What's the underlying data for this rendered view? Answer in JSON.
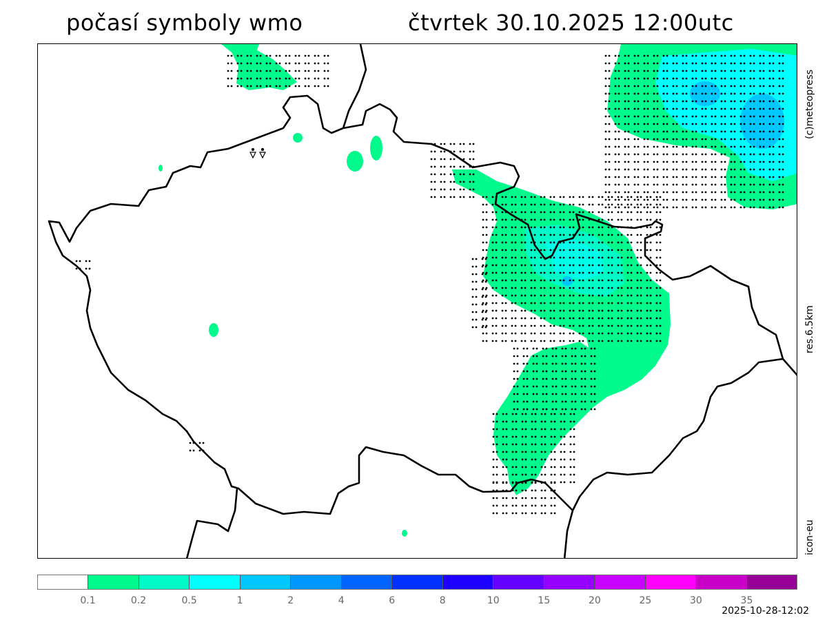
{
  "header": {
    "title": "počasí symboly wmo",
    "datetime": "čtvrtek 30.10.2025 12:00utc"
  },
  "side_labels": {
    "copyright": "(c)meteopress",
    "resolution": "res.6.5km",
    "model": "icon-eu"
  },
  "colorbar": {
    "colors": [
      "#ffffff",
      "#00fa8c",
      "#00fac8",
      "#00ffff",
      "#00c8ff",
      "#0096ff",
      "#0064ff",
      "#0032ff",
      "#1e00ff",
      "#6400ff",
      "#9600ff",
      "#c800ff",
      "#ff00ff",
      "#c800c8",
      "#960096"
    ],
    "ticks": [
      "0.1",
      "0.2",
      "0.5",
      "1",
      "2",
      "4",
      "6",
      "8",
      "10",
      "15",
      "20",
      "25",
      "30",
      "35"
    ]
  },
  "timestamp": "2025-10-28-12:02",
  "map": {
    "precip_colors": {
      "light": "#00fa8c",
      "medium": "#00fac8",
      "high": "#00ffff",
      "peak": "#00c8ff"
    },
    "symbol_icons": [
      "drizzle-dots-icon",
      "shower-triangle-icon"
    ]
  }
}
